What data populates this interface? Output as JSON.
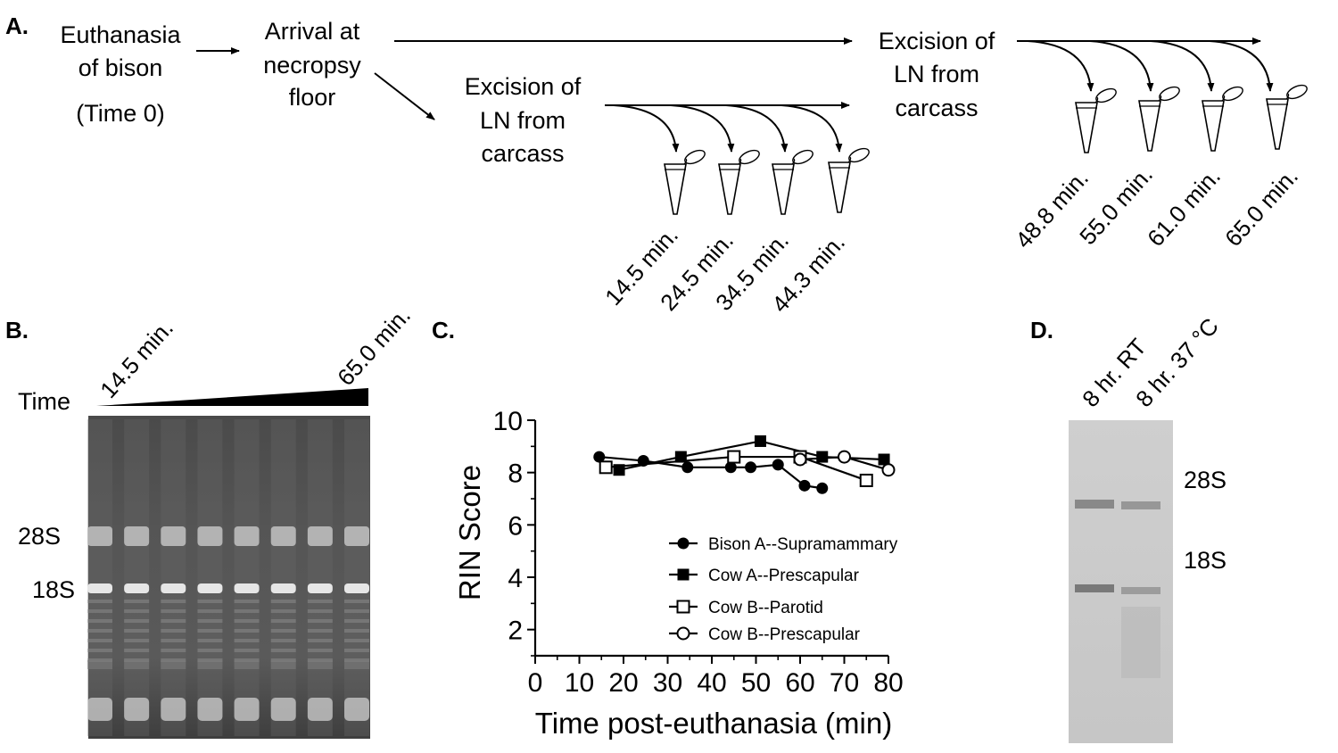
{
  "panels": {
    "a": {
      "label": "A.",
      "euthanasia_line1": "Euthanasia",
      "euthanasia_line2": "of bison",
      "euthanasia_line3": "(Time 0)",
      "arrival_line1": "Arrival at",
      "arrival_line2": "necropsy",
      "arrival_line3": "floor",
      "excision1": [
        "Excision of",
        "LN from",
        "carcass"
      ],
      "excision2": [
        "Excision of",
        "LN from",
        "carcass"
      ],
      "times_group1": [
        "14.5 min.",
        "24.5 min.",
        "34.5 min.",
        "44.3 min."
      ],
      "times_group2": [
        "48.8 min.",
        "55.0 min.",
        "61.0 min.",
        "65.0 min."
      ]
    },
    "b": {
      "label": "B.",
      "time_label": "Time",
      "start_time": "14.5 min.",
      "end_time": "65.0 min.",
      "band_28s": "28S",
      "band_18s": "18S",
      "lane_count": 8
    },
    "c": {
      "label": "C."
    },
    "d": {
      "label": "D.",
      "lane1": "8 hr. RT",
      "lane2": "8 hr. 37 °C",
      "band_28s": "28S",
      "band_18s": "18S"
    }
  },
  "chart_data": {
    "type": "line",
    "title": "",
    "xlabel": "Time post-euthanasia (min)",
    "ylabel": "RIN Score",
    "xlim": [
      0,
      80
    ],
    "ylim": [
      1,
      10
    ],
    "xticks": [
      "0",
      "10",
      "20",
      "30",
      "40",
      "50",
      "60",
      "70",
      "80"
    ],
    "yticks": [
      "2",
      "4",
      "6",
      "8",
      "10"
    ],
    "legend_position": "bottom-right",
    "series": [
      {
        "name": "Bison A--Supramammary",
        "marker": "filled-circle",
        "x": [
          14.5,
          24.5,
          34.5,
          44.3,
          48.8,
          55.0,
          61.0,
          65.0
        ],
        "y": [
          8.6,
          8.45,
          8.2,
          8.2,
          8.2,
          8.3,
          7.5,
          7.4
        ]
      },
      {
        "name": "Cow A--Prescapular",
        "marker": "filled-square",
        "x": [
          19,
          33,
          51,
          65,
          79
        ],
        "y": [
          8.1,
          8.6,
          9.2,
          8.6,
          8.5
        ]
      },
      {
        "name": "Cow B--Parotid",
        "marker": "open-square",
        "x": [
          16,
          45,
          60,
          75
        ],
        "y": [
          8.2,
          8.6,
          8.6,
          7.7
        ]
      },
      {
        "name": "Cow B--Prescapular",
        "marker": "open-circle",
        "x": [
          60,
          70,
          80
        ],
        "y": [
          8.5,
          8.6,
          8.1
        ]
      }
    ]
  }
}
